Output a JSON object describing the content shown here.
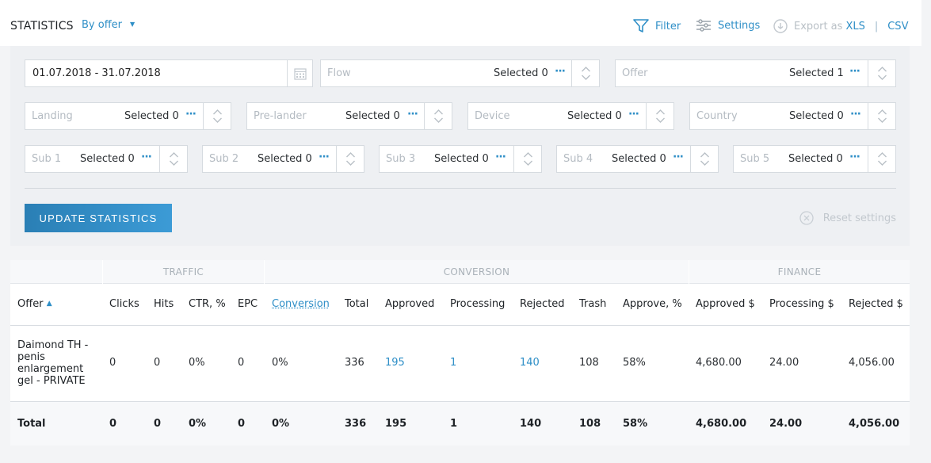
{
  "header": {
    "title": "STATISTICS",
    "group_by": "By offer",
    "filter_label": "Filter",
    "settings_label": "Settings",
    "export_label": "Export as",
    "xls": "XLS",
    "csv": "CSV",
    "separator": "|"
  },
  "filters": {
    "date_range": "01.07.2018 - 31.07.2018",
    "flow": {
      "placeholder": "Flow",
      "selected": "Selected 0"
    },
    "offer": {
      "placeholder": "Offer",
      "selected": "Selected 1"
    },
    "landing": {
      "placeholder": "Landing",
      "selected": "Selected 0"
    },
    "prelander": {
      "placeholder": "Pre-lander",
      "selected": "Selected 0"
    },
    "device": {
      "placeholder": "Device",
      "selected": "Selected 0"
    },
    "country": {
      "placeholder": "Country",
      "selected": "Selected 0"
    },
    "sub1": {
      "placeholder": "Sub 1",
      "selected": "Selected 0"
    },
    "sub2": {
      "placeholder": "Sub 2",
      "selected": "Selected 0"
    },
    "sub3": {
      "placeholder": "Sub 3",
      "selected": "Selected 0"
    },
    "sub4": {
      "placeholder": "Sub 4",
      "selected": "Selected 0"
    },
    "sub5": {
      "placeholder": "Sub 5",
      "selected": "Selected 0"
    },
    "more": "···",
    "update_button": "UPDATE STATISTICS",
    "reset_label": "Reset settings"
  },
  "table": {
    "groups": {
      "traffic": "TRAFFIC",
      "conversion": "CONVERSION",
      "finance": "FINANCE"
    },
    "columns": [
      "Offer",
      "Clicks",
      "Hits",
      "CTR, %",
      "EPC",
      "Conversion",
      "Total",
      "Approved",
      "Processing",
      "Rejected",
      "Trash",
      "Approve, %",
      "Approved $",
      "Processing $",
      "Rejected $"
    ],
    "row": {
      "offer": "Daimond TH - penis enlargement gel - PRIVATE",
      "values": [
        "0",
        "0",
        "0%",
        "0",
        "0%",
        "336",
        "195",
        "1",
        "140",
        "108",
        "58%",
        "4,680.00",
        "24.00",
        "4,056.00"
      ]
    },
    "total": {
      "label": "Total",
      "values": [
        "0",
        "0",
        "0%",
        "0",
        "0%",
        "336",
        "195",
        "1",
        "140",
        "108",
        "58%",
        "4,680.00",
        "24.00",
        "4,056.00"
      ]
    },
    "colors": {
      "link": "#2f8fc7",
      "button": "#2f8fc7"
    }
  }
}
